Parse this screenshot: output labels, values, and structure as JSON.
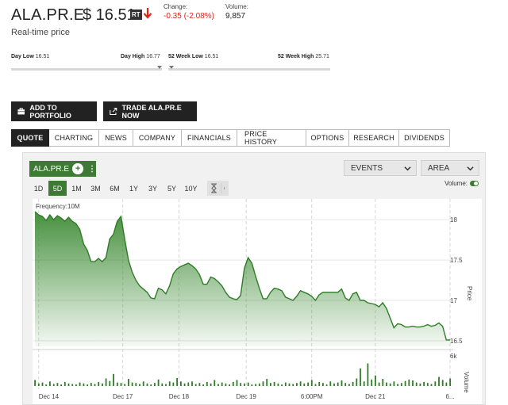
{
  "quote": {
    "symbol": "ALA.PR.E",
    "price": "$ 16.51",
    "rt_badge": "RT",
    "change_label": "Change:",
    "change_value": "-0.35 (-2.08%)",
    "volume_label": "Volume:",
    "volume_value": "9,857",
    "realtime_text": "Real-time price",
    "down_color": "#e0251b"
  },
  "ranges": {
    "day_low_label": "Day Low",
    "day_low_value": "16.51",
    "day_high_label": "Day High",
    "day_high_value": "16.77",
    "wk52_low_label": "52 Week Low",
    "wk52_low_value": "16.51",
    "wk52_high_label": "52 Week High",
    "wk52_high_value": "25.71"
  },
  "actions": {
    "add_portfolio": "ADD TO PORTFOLIO",
    "trade_now": "TRADE ALA.PR.E NOW"
  },
  "tabs": [
    {
      "label": "QUOTE",
      "active": true
    },
    {
      "label": "CHARTING",
      "active": false
    },
    {
      "label": "NEWS",
      "active": false
    },
    {
      "label": "COMPANY",
      "active": false
    },
    {
      "label": "FINANCIALS",
      "active": false
    },
    {
      "label": "PRICE HISTORY",
      "active": false
    },
    {
      "label": "OPTIONS",
      "active": false
    },
    {
      "label": "RESEARCH",
      "active": false
    },
    {
      "label": "DIVIDENDS",
      "active": false
    }
  ],
  "chart_controls": {
    "symbol": "ALA.PR.E",
    "events_label": "EVENTS",
    "type_label": "AREA",
    "volume_label": "Volume:",
    "periods": [
      "1D",
      "5D",
      "1M",
      "3M",
      "6M",
      "1Y",
      "3Y",
      "5Y",
      "10Y"
    ],
    "active_period": "5D",
    "frequency_label": "Frequency:10M",
    "accent_color": "#3d7a33"
  },
  "chart_data": {
    "type": "area",
    "frequency": "10M",
    "y_axis_label": "Price",
    "volume_axis_label": "Volume",
    "y_ticks": [
      "18",
      "17.5",
      "17",
      "16.5"
    ],
    "y_tick_values": [
      18,
      17.5,
      17,
      16.5
    ],
    "ylim": [
      16.43,
      18.1
    ],
    "volume_ticks": [
      "6k"
    ],
    "volume_tick_values": [
      6000
    ],
    "x_tick_labels": [
      "Dec 14",
      "Dec 17",
      "Dec 18",
      "Dec 19",
      "6:00PM",
      "Dec 21",
      "6..."
    ],
    "x_tick_positions": [
      1,
      23.5,
      38.5,
      56.5,
      74,
      91,
      111
    ],
    "grid": true,
    "price_series": [
      18.1,
      18.06,
      18.04,
      17.99,
      18.06,
      18.0,
      18.05,
      18.02,
      17.98,
      18.03,
      17.98,
      17.95,
      17.88,
      17.7,
      17.62,
      17.48,
      17.48,
      17.52,
      17.48,
      17.53,
      17.76,
      17.82,
      17.98,
      18.04,
      17.76,
      17.5,
      17.35,
      17.25,
      17.18,
      17.14,
      17.1,
      17.03,
      17.02,
      17.15,
      17.13,
      17.08,
      17.18,
      17.33,
      17.39,
      17.42,
      17.44,
      17.46,
      17.43,
      17.39,
      17.32,
      17.2,
      17.2,
      17.29,
      17.27,
      17.23,
      17.18,
      17.1,
      17.04,
      17.02,
      17.01,
      17.06,
      17.4,
      17.53,
      17.46,
      17.3,
      17.15,
      17.02,
      17.02,
      17.1,
      17.15,
      17.14,
      17.12,
      17.04,
      17.02,
      17.0,
      17.05,
      17.12,
      17.1,
      17.08,
      17.05,
      17.0,
      17.07,
      17.1,
      17.1,
      17.1,
      17.1,
      17.1,
      17.14,
      17.03,
      17.0,
      17.08,
      17.1,
      17.0,
      17.0,
      16.97,
      16.96,
      16.95,
      16.92,
      16.97,
      16.9,
      16.78,
      16.66,
      16.71,
      16.7,
      16.67,
      16.67,
      16.68,
      16.67,
      16.67,
      16.68,
      16.7,
      16.68,
      16.69,
      16.72,
      16.68,
      16.51,
      16.51
    ],
    "volume_series": [
      1200,
      500,
      700,
      300,
      900,
      400,
      600,
      300,
      800,
      500,
      400,
      300,
      700,
      500,
      300,
      600,
      400,
      800,
      500,
      1500,
      1000,
      2400,
      700,
      600,
      400,
      1400,
      700,
      600,
      400,
      900,
      500,
      300,
      600,
      1300,
      500,
      400,
      900,
      700,
      1600,
      900,
      500,
      700,
      900,
      400,
      600,
      300,
      800,
      500,
      1200,
      400,
      700,
      500,
      300,
      800,
      1200,
      600,
      500,
      700,
      300,
      400,
      500,
      900,
      1400,
      600,
      800,
      500,
      300,
      700,
      500,
      400,
      600,
      900,
      500,
      700,
      1200,
      400,
      800,
      600,
      300,
      900,
      500,
      700,
      1100,
      600,
      400,
      800,
      1500,
      3500,
      900,
      4500,
      1300,
      2100,
      700,
      1400,
      700,
      500,
      900,
      400,
      600,
      1000,
      1300,
      1100,
      700,
      500,
      800,
      600,
      400,
      900,
      1800,
      1200,
      700,
      1500
    ],
    "colors": {
      "line": "#2e7d26",
      "area_top": "#3d8a34",
      "volume": "#2e7d26"
    }
  }
}
